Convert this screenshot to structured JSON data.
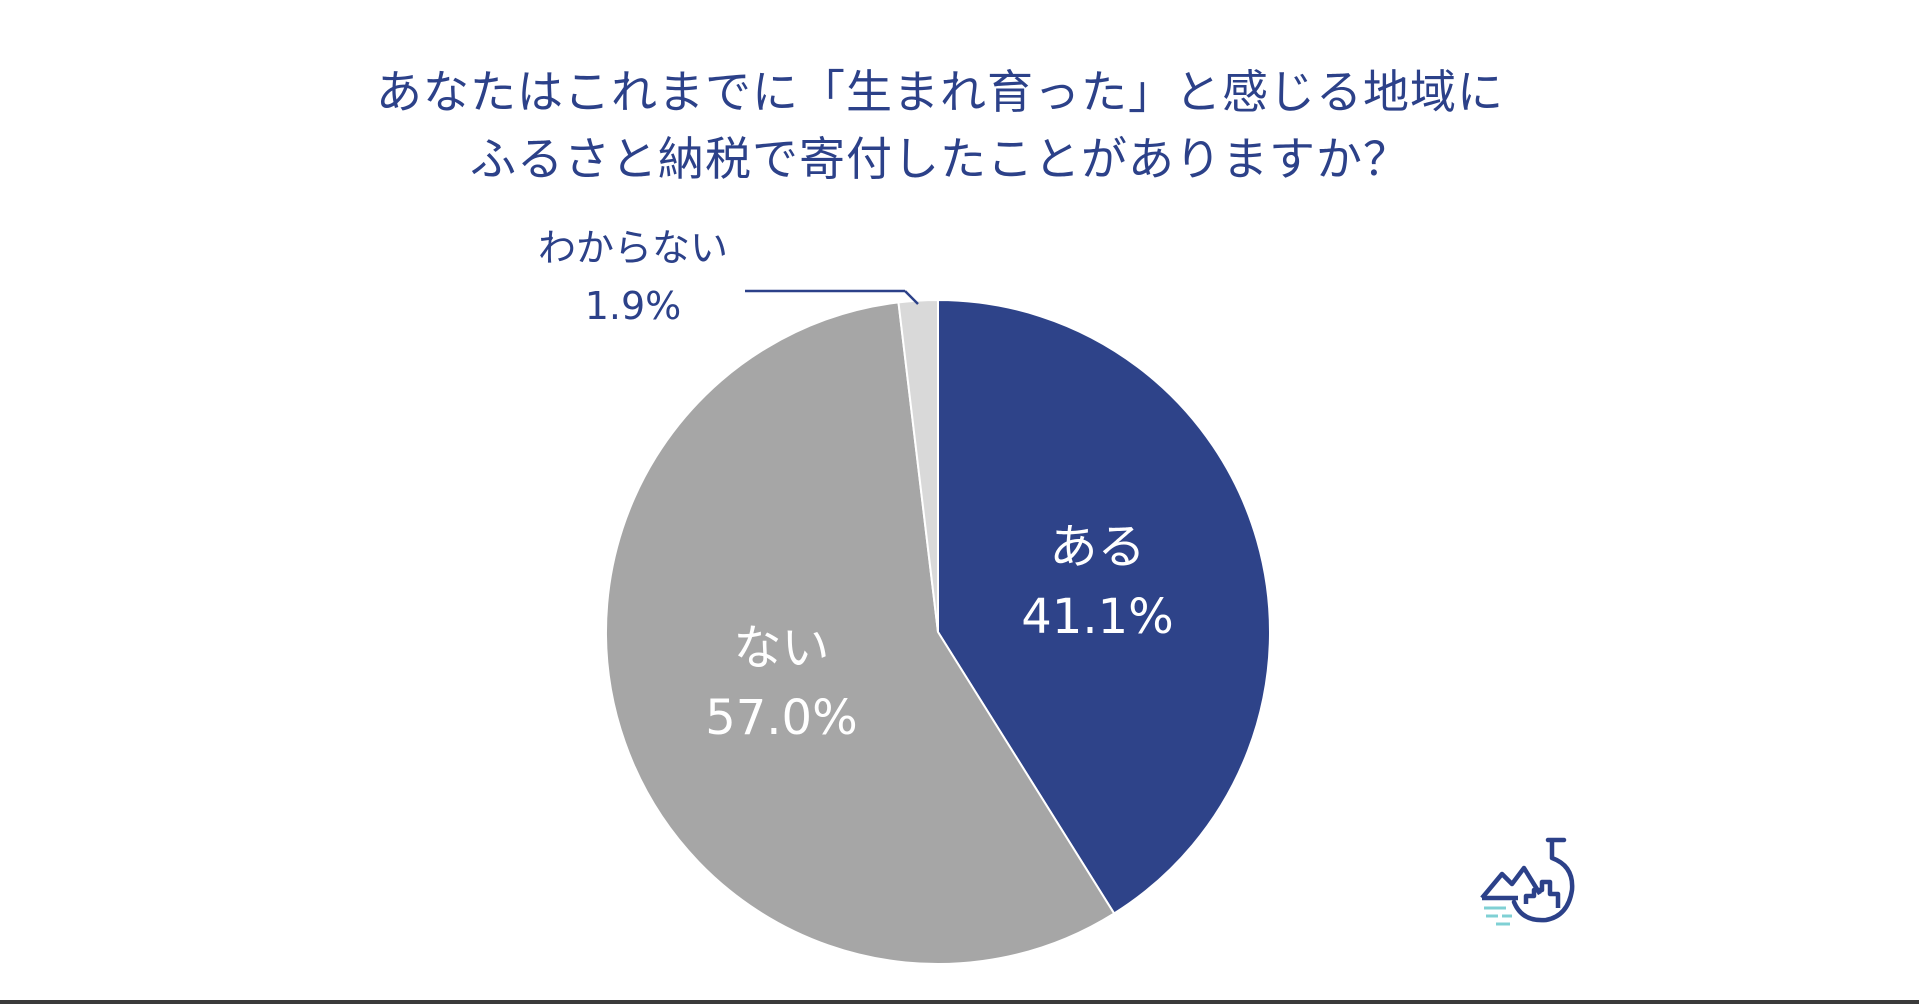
{
  "chart_data": {
    "type": "pie",
    "title_lines": [
      "あなたはこれまでに「生まれ育った」と感じる地域に",
      "ふるさと納税で寄付したことがありますか？"
    ],
    "slices": [
      {
        "label": "ある",
        "value": 41.1,
        "value_text": "41.1%",
        "color": "#2e4389",
        "label_position": "inside"
      },
      {
        "label": "ない",
        "value": 57.0,
        "value_text": "57.0%",
        "color": "#a6a6a6",
        "label_position": "inside"
      },
      {
        "label": "わからない",
        "value": 1.9,
        "value_text": "1.9%",
        "color": "#d9d9d9",
        "label_position": "outside-top-left"
      }
    ],
    "start_angle": "12 o'clock",
    "direction": "clockwise"
  },
  "colors": {
    "title": "#2c4189",
    "leader_line": "#2c4189",
    "slice_border": "#ffffff",
    "logo": "#2c4189",
    "logo_accent": "#7fd0d4"
  },
  "logo": {
    "icon": "flask-mountain-logo-icon"
  }
}
